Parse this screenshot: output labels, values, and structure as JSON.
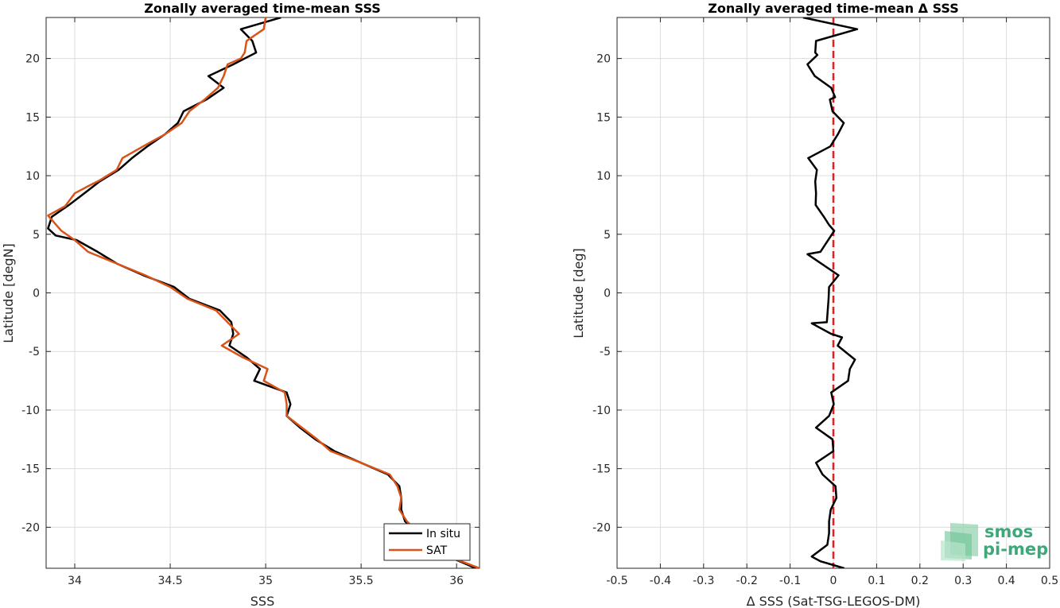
{
  "chart_data": [
    {
      "type": "line",
      "title": "Zonally averaged time-mean SSS",
      "xlabel": "SSS",
      "ylabel": "Latitude [degN]",
      "xlim": [
        33.85,
        36.12
      ],
      "ylim": [
        -23.5,
        23.5
      ],
      "xticks": [
        34,
        34.5,
        35,
        35.5,
        36
      ],
      "yticks": [
        -20,
        -15,
        -10,
        -5,
        0,
        5,
        10,
        15,
        20
      ],
      "grid": true,
      "legend": "bottom-right",
      "series": [
        {
          "name": "In situ",
          "color": "#000000",
          "points": [
            [
              35.08,
              23.5
            ],
            [
              34.87,
              22.5
            ],
            [
              34.93,
              21.5
            ],
            [
              34.95,
              20.5
            ],
            [
              34.83,
              19.5
            ],
            [
              34.7,
              18.5
            ],
            [
              34.78,
              17.5
            ],
            [
              34.69,
              16.5
            ],
            [
              34.57,
              15.5
            ],
            [
              34.54,
              14.5
            ],
            [
              34.47,
              13.5
            ],
            [
              34.38,
              12.5
            ],
            [
              34.3,
              11.5
            ],
            [
              34.23,
              10.5
            ],
            [
              34.13,
              9.5
            ],
            [
              34.05,
              8.5
            ],
            [
              33.97,
              7.5
            ],
            [
              33.88,
              6.5
            ],
            [
              33.86,
              5.5
            ],
            [
              33.9,
              4.9
            ],
            [
              34.01,
              4.5
            ],
            [
              34.12,
              3.5
            ],
            [
              34.22,
              2.5
            ],
            [
              34.36,
              1.5
            ],
            [
              34.52,
              0.5
            ],
            [
              34.6,
              -0.5
            ],
            [
              34.76,
              -1.5
            ],
            [
              34.82,
              -2.5
            ],
            [
              34.83,
              -3.5
            ],
            [
              34.81,
              -4.5
            ],
            [
              34.9,
              -5.5
            ],
            [
              34.97,
              -6.5
            ],
            [
              34.94,
              -7.5
            ],
            [
              35.11,
              -8.5
            ],
            [
              35.13,
              -9.5
            ],
            [
              35.11,
              -10.5
            ],
            [
              35.18,
              -11.5
            ],
            [
              35.26,
              -12.5
            ],
            [
              35.36,
              -13.5
            ],
            [
              35.5,
              -14.5
            ],
            [
              35.64,
              -15.5
            ],
            [
              35.7,
              -16.5
            ],
            [
              35.71,
              -17.5
            ],
            [
              35.71,
              -18.5
            ],
            [
              35.73,
              -19.5
            ],
            [
              35.79,
              -20.5
            ],
            [
              35.86,
              -21.5
            ],
            [
              35.96,
              -22.5
            ],
            [
              36.1,
              -23.5
            ]
          ]
        },
        {
          "name": "SAT",
          "color": "#D95319",
          "points": [
            [
              35,
              23.5
            ],
            [
              34.99,
              22.5
            ],
            [
              34.9,
              21.5
            ],
            [
              34.89,
              20.5
            ],
            [
              34.87,
              20
            ],
            [
              34.8,
              19.5
            ],
            [
              34.78,
              18.5
            ],
            [
              34.75,
              17.5
            ],
            [
              34.68,
              16.5
            ],
            [
              34.6,
              15.5
            ],
            [
              34.56,
              14.5
            ],
            [
              34.47,
              13.5
            ],
            [
              34.38,
              12.7
            ],
            [
              34.25,
              11.5
            ],
            [
              34.22,
              10.5
            ],
            [
              34.13,
              9.6
            ],
            [
              34.07,
              9.1
            ],
            [
              34,
              8.5
            ],
            [
              33.95,
              7.4
            ],
            [
              33.86,
              6.6
            ],
            [
              33.93,
              5.3
            ],
            [
              34,
              4.5
            ],
            [
              34.07,
              3.5
            ],
            [
              34.22,
              2.5
            ],
            [
              34.37,
              1.5
            ],
            [
              34.5,
              0.5
            ],
            [
              34.59,
              -0.5
            ],
            [
              34.74,
              -1.5
            ],
            [
              34.8,
              -2.5
            ],
            [
              34.86,
              -3.5
            ],
            [
              34.77,
              -4.5
            ],
            [
              34.88,
              -5.5
            ],
            [
              35.01,
              -6.5
            ],
            [
              34.99,
              -7.5
            ],
            [
              35.1,
              -8.5
            ],
            [
              35.11,
              -9.5
            ],
            [
              35.11,
              -10.5
            ],
            [
              35.19,
              -11.5
            ],
            [
              35.27,
              -12.5
            ],
            [
              35.34,
              -13.5
            ],
            [
              35.5,
              -14.5
            ],
            [
              35.65,
              -15.5
            ],
            [
              35.69,
              -16.5
            ],
            [
              35.71,
              -17.5
            ],
            [
              35.7,
              -18.5
            ],
            [
              35.74,
              -19.5
            ],
            [
              35.8,
              -20.5
            ],
            [
              35.86,
              -21.5
            ],
            [
              35.96,
              -22.5
            ],
            [
              36.12,
              -23.5
            ]
          ]
        }
      ]
    },
    {
      "type": "line",
      "title": "Zonally averaged time-mean Δ SSS",
      "xlabel": "Δ SSS (Sat-TSG-LEGOS-DM)",
      "ylabel": "Latitude [deg]",
      "xlim": [
        -0.5,
        0.5
      ],
      "ylim": [
        -23.5,
        23.5
      ],
      "xticks": [
        -0.5,
        -0.4,
        -0.3,
        -0.2,
        -0.1,
        0,
        0.1,
        0.2,
        0.3,
        0.4,
        0.5
      ],
      "yticks": [
        -20,
        -15,
        -10,
        -5,
        0,
        5,
        10,
        15,
        20
      ],
      "grid": true,
      "zero_line": {
        "x": 0,
        "color": "#E02020",
        "style": "dashed"
      },
      "series": [
        {
          "color": "#000000",
          "points": [
            [
              -0.07,
              23.5
            ],
            [
              0.055,
              22.5
            ],
            [
              -0.04,
              21.5
            ],
            [
              -0.042,
              20.5
            ],
            [
              -0.037,
              20.3
            ],
            [
              -0.06,
              19.5
            ],
            [
              -0.043,
              18.5
            ],
            [
              -0.005,
              17.5
            ],
            [
              0.004,
              16.7
            ],
            [
              -0.008,
              16.5
            ],
            [
              -0.002,
              15.5
            ],
            [
              0.024,
              14.5
            ],
            [
              0.01,
              13.5
            ],
            [
              -0.007,
              12.5
            ],
            [
              -0.058,
              11.5
            ],
            [
              -0.038,
              10.5
            ],
            [
              -0.042,
              9.5
            ],
            [
              -0.04,
              8.5
            ],
            [
              -0.041,
              7.5
            ],
            [
              -0.022,
              6.5
            ],
            [
              -0.01,
              5.8
            ],
            [
              0.002,
              5.3
            ],
            [
              -0.03,
              3.5
            ],
            [
              -0.06,
              3.3
            ],
            [
              0.012,
              1.5
            ],
            [
              -0.01,
              0.5
            ],
            [
              -0.011,
              -0.5
            ],
            [
              -0.015,
              -2.5
            ],
            [
              -0.05,
              -2.6
            ],
            [
              -0.005,
              -3.5
            ],
            [
              0.02,
              -3.8
            ],
            [
              0.01,
              -4.5
            ],
            [
              0.05,
              -5.7
            ],
            [
              0.038,
              -6.5
            ],
            [
              0.034,
              -7.5
            ],
            [
              -0.005,
              -8.5
            ],
            [
              0.001,
              -9.5
            ],
            [
              -0.01,
              -10.5
            ],
            [
              -0.04,
              -11.5
            ],
            [
              -0.002,
              -12.5
            ],
            [
              0,
              -13.5
            ],
            [
              -0.04,
              -14.5
            ],
            [
              -0.025,
              -15.5
            ],
            [
              0.005,
              -16.5
            ],
            [
              0.007,
              -17.5
            ],
            [
              -0.006,
              -18.5
            ],
            [
              -0.01,
              -19.5
            ],
            [
              -0.01,
              -20.5
            ],
            [
              -0.014,
              -21.5
            ],
            [
              -0.05,
              -22.5
            ],
            [
              -0.03,
              -22.9
            ],
            [
              0.025,
              -23.5
            ]
          ]
        }
      ]
    }
  ],
  "legend": {
    "entries": [
      "In situ",
      "SAT"
    ]
  },
  "logo": {
    "line1": "smos",
    "line2": "pi-mep"
  }
}
